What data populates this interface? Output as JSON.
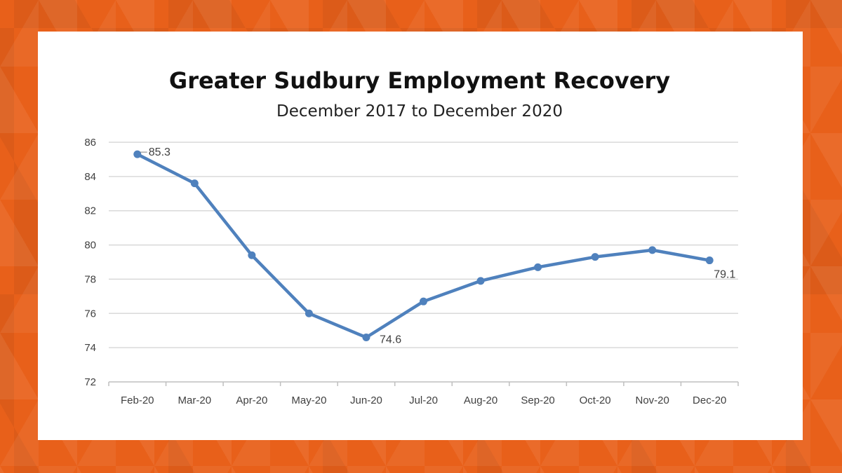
{
  "chart_data": {
    "type": "line",
    "title": "Greater Sudbury Employment Recovery",
    "subtitle": "December 2017 to December 2020",
    "categories": [
      "Feb-20",
      "Mar-20",
      "Apr-20",
      "May-20",
      "Jun-20",
      "Jul-20",
      "Aug-20",
      "Sep-20",
      "Oct-20",
      "Nov-20",
      "Dec-20"
    ],
    "series": [
      {
        "values": [
          85.3,
          83.6,
          79.4,
          76.0,
          74.6,
          76.7,
          77.9,
          78.7,
          79.3,
          79.7,
          79.1
        ]
      }
    ],
    "data_labels": [
      {
        "index": 0,
        "text": "85.3"
      },
      {
        "index": 4,
        "text": "74.6"
      },
      {
        "index": 10,
        "text": "79.1"
      }
    ],
    "xlabel": "",
    "ylabel": "",
    "ylim": [
      72,
      86
    ],
    "yticks": [
      72,
      74,
      76,
      78,
      80,
      82,
      84,
      86
    ],
    "grid": true,
    "legend": "none",
    "colors": {
      "line": "#4f81bd",
      "grid": "#d9d9d9",
      "background": "#e8601a"
    }
  }
}
